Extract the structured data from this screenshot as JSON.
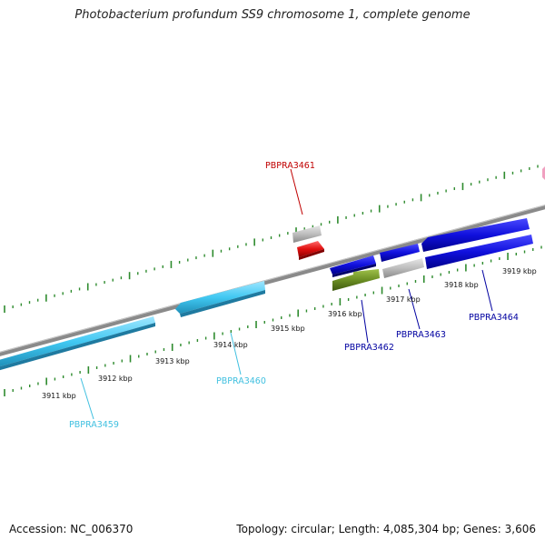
{
  "title": "Photobacterium profundum SS9 chromosome 1, complete genome",
  "footer": {
    "accession": "Accession: NC_006370",
    "summary": "Topology: circular; Length: 4,085,304 bp; Genes: 3,606"
  },
  "colors": {
    "backbone": "#8a8a8a",
    "tick": "#2e8b2e",
    "cyan_gene": "#41c8f2",
    "blue_gene": "#1010dd",
    "grey_gene": "#b8b8b8",
    "red_gene": "#e01010",
    "olive_gene": "#6b8e23",
    "label_red": "#c00000",
    "label_blue": "#0000a0",
    "label_cyan": "#40c0e0"
  },
  "scale_labels": [
    "3911 kbp",
    "3912 kbp",
    "3913 kbp",
    "3914 kbp",
    "3915 kbp",
    "3916 kbp",
    "3917 kbp",
    "3918 kbp",
    "3919 kbp"
  ],
  "gene_labels": [
    "PBPRA3461",
    "PBPRA3462",
    "PBPRA3463",
    "PBPRA3464",
    "PBPRA3460",
    "PBPRA3459"
  ]
}
